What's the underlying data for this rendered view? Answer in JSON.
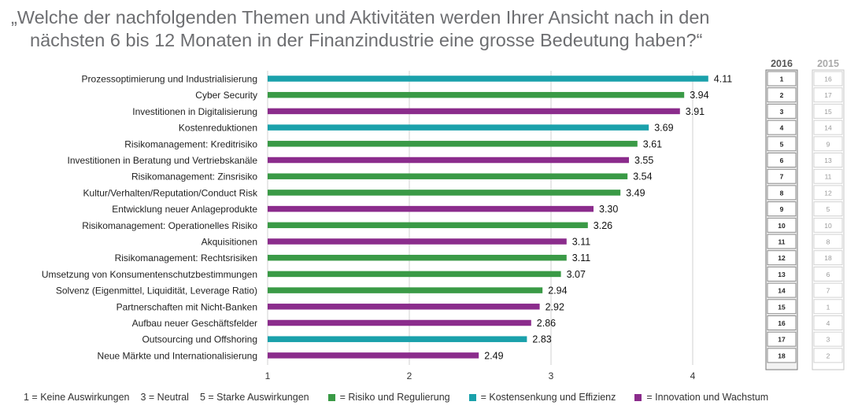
{
  "title": {
    "line1": "„Welche der nachfolgenden Themen und Aktivitäten werden Ihrer Ansicht nach in den",
    "line2": "nächsten 6 bis 12 Monaten in der Finanzindustrie eine grosse Bedeutung haben?“"
  },
  "colors": {
    "risk": "#3a9a46",
    "cost": "#1aa1ab",
    "innovation": "#8b2c8c"
  },
  "chart_data": {
    "type": "bar",
    "orientation": "horizontal",
    "xlim": [
      1,
      4.3
    ],
    "xticks": [
      "1",
      "2",
      "3",
      "4"
    ],
    "grid": true,
    "categories": [
      "Prozessoptimierung und Industrialisierung",
      "Cyber Security",
      "Investitionen in Digitalisierung",
      "Kostenreduktionen",
      "Risikomanagement: Kreditrisiko",
      "Investitionen in Beratung und Vertriebskanäle",
      "Risikomanagement: Zinsrisiko",
      "Kultur/Verhalten/Reputation/Conduct Risk",
      "Entwicklung neuer Anlageprodukte",
      "Risikomanagement: Operationelles Risiko",
      "Akquisitionen",
      "Risikomanagement: Rechtsrisiken",
      "Umsetzung von Konsumentenschutzbestimmungen",
      "Solvenz (Eigenmittel, Liquidität, Leverage Ratio)",
      "Partnerschaften mit Nicht-Banken",
      "Aufbau neuer Geschäftsfelder",
      "Outsourcing und Offshoring",
      "Neue Märkte und Internationalisierung"
    ],
    "values": [
      4.11,
      3.94,
      3.91,
      3.69,
      3.61,
      3.55,
      3.54,
      3.49,
      3.3,
      3.26,
      3.11,
      3.11,
      3.07,
      2.94,
      2.92,
      2.86,
      2.83,
      2.49
    ],
    "value_labels": [
      "4.11",
      "3.94",
      "3.91",
      "3.69",
      "3.61",
      "3.55",
      "3.54",
      "3.49",
      "3.30",
      "3.26",
      "3.11",
      "3.11",
      "3.07",
      "2.94",
      "2.92",
      "2.86",
      "2.83",
      "2.49"
    ],
    "groups": [
      "cost",
      "risk",
      "innovation",
      "cost",
      "risk",
      "innovation",
      "risk",
      "risk",
      "innovation",
      "risk",
      "innovation",
      "risk",
      "risk",
      "risk",
      "innovation",
      "innovation",
      "cost",
      "innovation"
    ],
    "rank_columns": [
      {
        "header": "2016",
        "values": [
          "1",
          "2",
          "3",
          "4",
          "5",
          "6",
          "7",
          "8",
          "9",
          "10",
          "11",
          "12",
          "13",
          "14",
          "15",
          "16",
          "17",
          "18"
        ]
      },
      {
        "header": "2015",
        "values": [
          "16",
          "17",
          "15",
          "14",
          "9",
          "13",
          "11",
          "12",
          "5",
          "10",
          "8",
          "18",
          "6",
          "7",
          "1",
          "4",
          "3",
          "2"
        ]
      }
    ]
  },
  "legend": {
    "scale1": "1 = Keine Auswirkungen",
    "scale3": "3 = Neutral",
    "scale5": "5 = Starke Auswirkungen",
    "risk": "= Risiko und Regulierung",
    "cost": "= Kostensenkung und Effizienz",
    "innovation": "= Innovation und Wachstum"
  }
}
